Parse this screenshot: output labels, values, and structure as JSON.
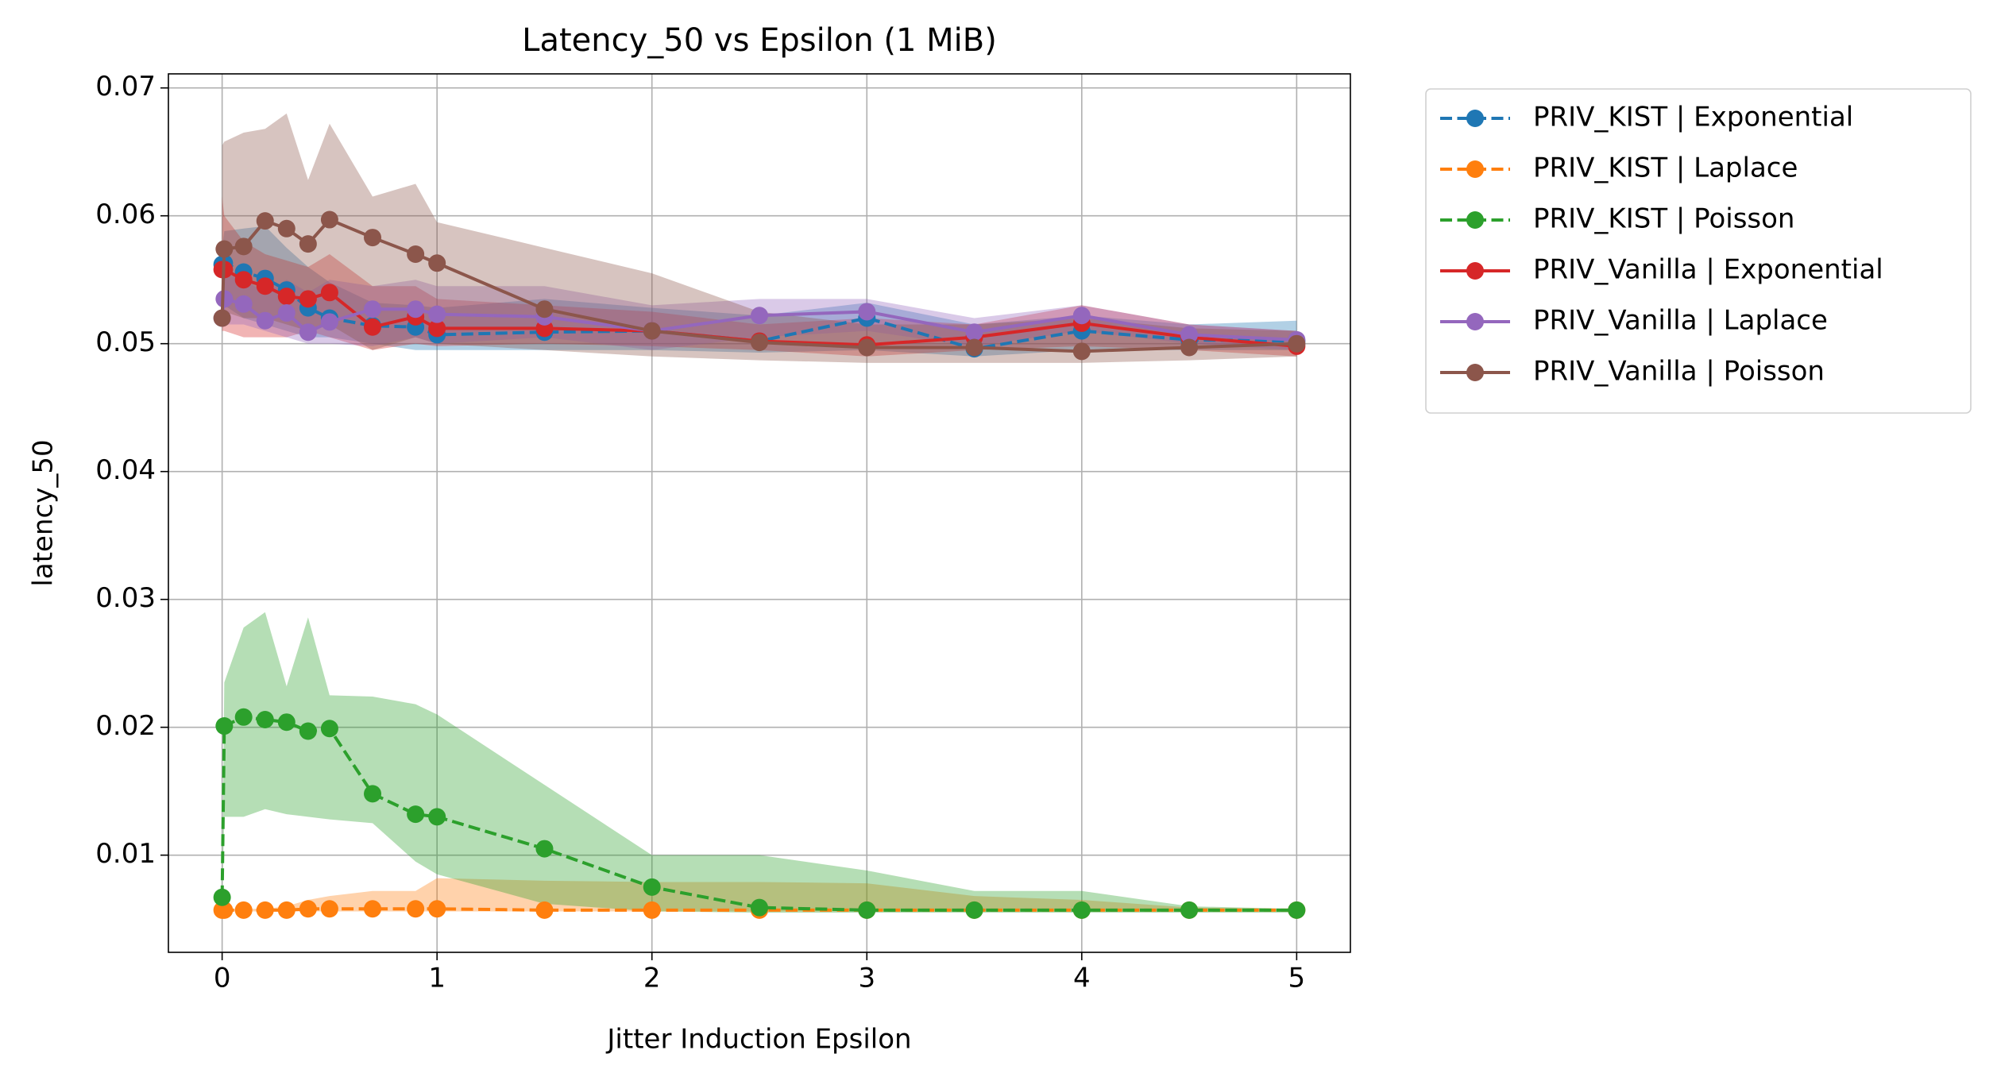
{
  "chart_data": {
    "type": "line",
    "title": "Latency_50 vs Epsilon (1 MiB)",
    "x_label": "Jitter Induction Epsilon",
    "y_label": "latency_50",
    "x": [
      0,
      0.01,
      0.1,
      0.2,
      0.3,
      0.4,
      0.5,
      0.7,
      0.9,
      1,
      1.5,
      2,
      2.5,
      3,
      3.5,
      4,
      4.5,
      5
    ],
    "xlim": [
      -0.25,
      5.25
    ],
    "xticks": [
      0,
      1,
      2,
      3,
      4,
      5
    ],
    "ylim": [
      0.0024,
      0.0711
    ],
    "yticks": [
      0.01,
      0.02,
      0.03,
      0.04,
      0.05,
      0.06,
      0.07
    ],
    "grid": true,
    "legend": "outside-upper-right",
    "series": [
      {
        "name": "PRIV_KIST | Exponential",
        "color": "#1f77b4",
        "linestyle": "dashed",
        "values": [
          0.0562,
          0.0563,
          0.0556,
          0.0551,
          0.0542,
          0.0528,
          0.052,
          0.0514,
          0.0513,
          0.0507,
          0.0509,
          0.051,
          0.0502,
          0.052,
          0.0496,
          0.051,
          0.0503,
          0.0502
        ],
        "upper": [
          0.0575,
          0.0588,
          0.059,
          0.0592,
          0.0575,
          0.056,
          0.0548,
          0.0532,
          0.053,
          0.0528,
          0.0535,
          0.0528,
          0.0522,
          0.0532,
          0.0515,
          0.0522,
          0.0515,
          0.0518
        ],
        "lower": [
          0.0545,
          0.053,
          0.052,
          0.0515,
          0.051,
          0.0505,
          0.0505,
          0.05,
          0.0495,
          0.0495,
          0.0495,
          0.0495,
          0.0493,
          0.0495,
          0.049,
          0.0495,
          0.0495,
          0.0495
        ]
      },
      {
        "name": "PRIV_KIST | Laplace",
        "color": "#ff7f0e",
        "linestyle": "dashed",
        "values": [
          0.0057,
          0.0057,
          0.0057,
          0.0057,
          0.0057,
          0.0058,
          0.0058,
          0.0058,
          0.0058,
          0.0058,
          0.0057,
          0.0057,
          0.0057,
          0.0057,
          0.0057,
          0.0057,
          0.0057,
          0.0057
        ],
        "upper": [
          0.0057,
          0.0058,
          0.0058,
          0.0058,
          0.006,
          0.0065,
          0.0068,
          0.0072,
          0.0072,
          0.0082,
          0.008,
          0.0079,
          0.0079,
          0.0078,
          0.0068,
          0.0065,
          0.0059,
          0.0058
        ],
        "lower": [
          0.0056,
          0.0056,
          0.0056,
          0.0056,
          0.0056,
          0.0056,
          0.0056,
          0.0056,
          0.0056,
          0.0056,
          0.0056,
          0.0056,
          0.0056,
          0.0056,
          0.0056,
          0.0056,
          0.0056,
          0.0056
        ]
      },
      {
        "name": "PRIV_KIST | Poisson",
        "color": "#2ca02c",
        "linestyle": "dashed",
        "values": [
          0.0067,
          0.0201,
          0.0208,
          0.0206,
          0.0204,
          0.0197,
          0.0199,
          0.0148,
          0.0132,
          0.013,
          0.0105,
          0.0075,
          0.0059,
          0.0057,
          0.0057,
          0.0057,
          0.0057,
          0.0057
        ],
        "upper": [
          0.0067,
          0.0235,
          0.0278,
          0.029,
          0.0232,
          0.0286,
          0.0225,
          0.0224,
          0.0218,
          0.021,
          0.0155,
          0.01,
          0.01,
          0.0088,
          0.0072,
          0.0072,
          0.006,
          0.0058
        ],
        "lower": [
          0.0067,
          0.013,
          0.013,
          0.0136,
          0.0132,
          0.013,
          0.0128,
          0.0125,
          0.0095,
          0.0085,
          0.0062,
          0.0056,
          0.0055,
          0.0055,
          0.0055,
          0.0055,
          0.0055,
          0.0055
        ]
      },
      {
        "name": "PRIV_Vanilla | Exponential",
        "color": "#d62728",
        "linestyle": "solid",
        "values": [
          0.0558,
          0.0558,
          0.055,
          0.0545,
          0.0537,
          0.0535,
          0.054,
          0.0513,
          0.0521,
          0.0512,
          0.0512,
          0.051,
          0.0502,
          0.0499,
          0.0505,
          0.0516,
          0.0505,
          0.0498
        ],
        "upper": [
          0.0615,
          0.06,
          0.058,
          0.057,
          0.0565,
          0.056,
          0.057,
          0.0545,
          0.0545,
          0.0535,
          0.053,
          0.0525,
          0.0515,
          0.052,
          0.0515,
          0.053,
          0.0515,
          0.051
        ],
        "lower": [
          0.051,
          0.051,
          0.0505,
          0.0505,
          0.0505,
          0.051,
          0.0505,
          0.0495,
          0.05,
          0.0498,
          0.05,
          0.0498,
          0.0495,
          0.049,
          0.0495,
          0.0498,
          0.0495,
          0.049
        ]
      },
      {
        "name": "PRIV_Vanilla | Laplace",
        "color": "#9467bd",
        "linestyle": "solid",
        "values": [
          0.052,
          0.0535,
          0.0531,
          0.0518,
          0.0524,
          0.0509,
          0.0517,
          0.0527,
          0.0527,
          0.0523,
          0.0521,
          0.051,
          0.0522,
          0.0525,
          0.0509,
          0.0522,
          0.0507,
          0.0503
        ],
        "upper": [
          0.0545,
          0.0555,
          0.055,
          0.054,
          0.055,
          0.054,
          0.055,
          0.0545,
          0.055,
          0.0545,
          0.0545,
          0.053,
          0.0535,
          0.0535,
          0.052,
          0.053,
          0.0515,
          0.051
        ],
        "lower": [
          0.0515,
          0.0515,
          0.0515,
          0.051,
          0.0505,
          0.05,
          0.05,
          0.0498,
          0.0505,
          0.05,
          0.0505,
          0.0495,
          0.0505,
          0.051,
          0.0498,
          0.051,
          0.05,
          0.0495
        ]
      },
      {
        "name": "PRIV_Vanilla | Poisson",
        "color": "#8c564b",
        "linestyle": "solid",
        "values": [
          0.052,
          0.0574,
          0.0576,
          0.0596,
          0.059,
          0.0578,
          0.0597,
          0.0583,
          0.057,
          0.0563,
          0.0527,
          0.051,
          0.0501,
          0.0497,
          0.0497,
          0.0494,
          0.0497,
          0.05
        ],
        "upper": [
          0.0655,
          0.0658,
          0.0665,
          0.0668,
          0.068,
          0.0628,
          0.0672,
          0.0615,
          0.0625,
          0.0595,
          0.0575,
          0.0555,
          0.0525,
          0.0515,
          0.0515,
          0.052,
          0.0512,
          0.051
        ],
        "lower": [
          0.0515,
          0.0525,
          0.052,
          0.052,
          0.0515,
          0.051,
          0.0515,
          0.0495,
          0.0505,
          0.05,
          0.0495,
          0.049,
          0.0487,
          0.0485,
          0.0485,
          0.0485,
          0.0487,
          0.049
        ]
      }
    ]
  }
}
